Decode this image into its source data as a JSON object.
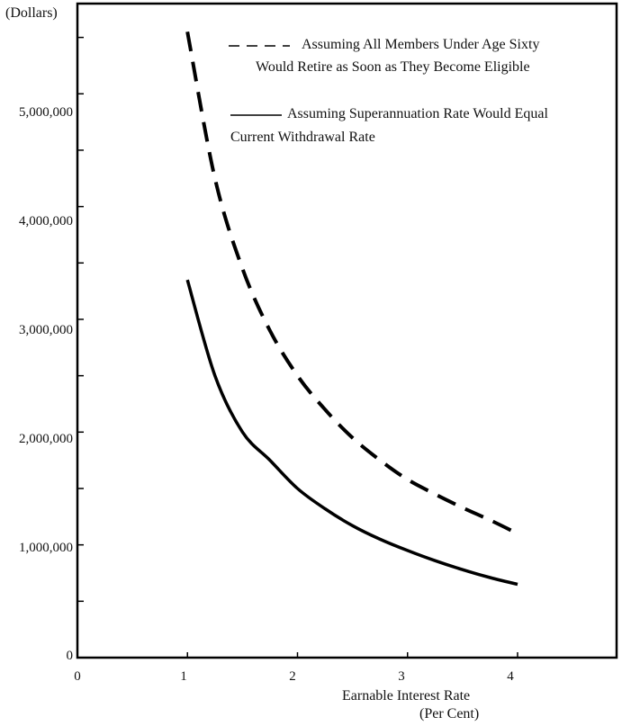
{
  "chart_data": {
    "type": "line",
    "ylabel": "(Dollars)",
    "xlabel_line1": "Earnable Interest Rate",
    "xlabel_line2": "(Per Cent)",
    "xlim": [
      0,
      4.9
    ],
    "ylim": [
      0,
      5800000
    ],
    "x_ticks": [
      "0",
      "1",
      "2",
      "3",
      "4"
    ],
    "y_ticks": [
      "0",
      "1,000,000",
      "2,000,000",
      "3,000,000",
      "4,000,000",
      "5,000,000"
    ],
    "grid": false,
    "legend_position": "top-right",
    "series": [
      {
        "name_line1": "Assuming All Members Under Age Sixty",
        "name_line2": "Would Retire as Soon as They Become  Eligible",
        "style": "dashed",
        "x": [
          1.0,
          1.25,
          1.5,
          1.75,
          2.0,
          2.25,
          2.5,
          2.75,
          3.0,
          3.25,
          3.5,
          3.75,
          4.0
        ],
        "y": [
          5550000,
          4250000,
          3450000,
          2900000,
          2500000,
          2200000,
          1950000,
          1750000,
          1580000,
          1450000,
          1330000,
          1220000,
          1100000
        ]
      },
      {
        "name_line1": "Assuming Superannuation Rate Would Equal",
        "name_line2": "Current Withdrawal Rate",
        "style": "solid",
        "x": [
          1.0,
          1.25,
          1.5,
          1.75,
          2.0,
          2.25,
          2.5,
          2.75,
          3.0,
          3.25,
          3.5,
          3.75,
          4.0
        ],
        "y": [
          3350000,
          2500000,
          2000000,
          1750000,
          1500000,
          1320000,
          1170000,
          1050000,
          950000,
          860000,
          780000,
          710000,
          650000
        ]
      }
    ]
  }
}
